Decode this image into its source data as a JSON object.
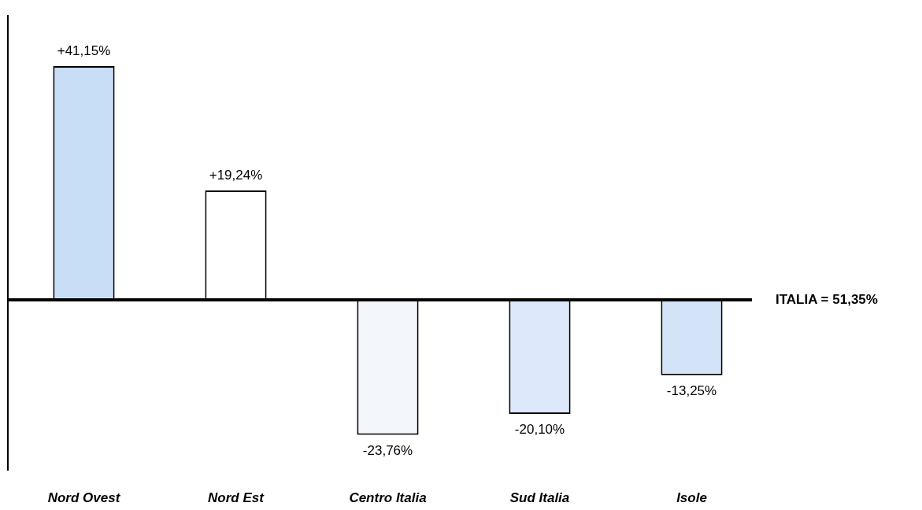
{
  "chart_data": {
    "type": "bar",
    "categories": [
      "Nord Ovest",
      "Nord Est",
      "Centro Italia",
      "Sud Italia",
      "Isole"
    ],
    "values": [
      41.15,
      19.24,
      -23.76,
      -20.1,
      -13.25
    ],
    "value_labels": [
      "+41,15%",
      "+19,24%",
      "-23,76%",
      "-20,10%",
      "-13,25%"
    ],
    "colors": [
      "#c8def7",
      "#ffffff",
      "#f3f6fb",
      "#dde9fa",
      "#d3e3f8"
    ],
    "tick_labels": "x",
    "ref_lines": [
      {
        "axis": "y",
        "value": 0,
        "color": "#000000"
      }
    ],
    "annotations": [
      "ITALIA = 51,35%"
    ]
  }
}
